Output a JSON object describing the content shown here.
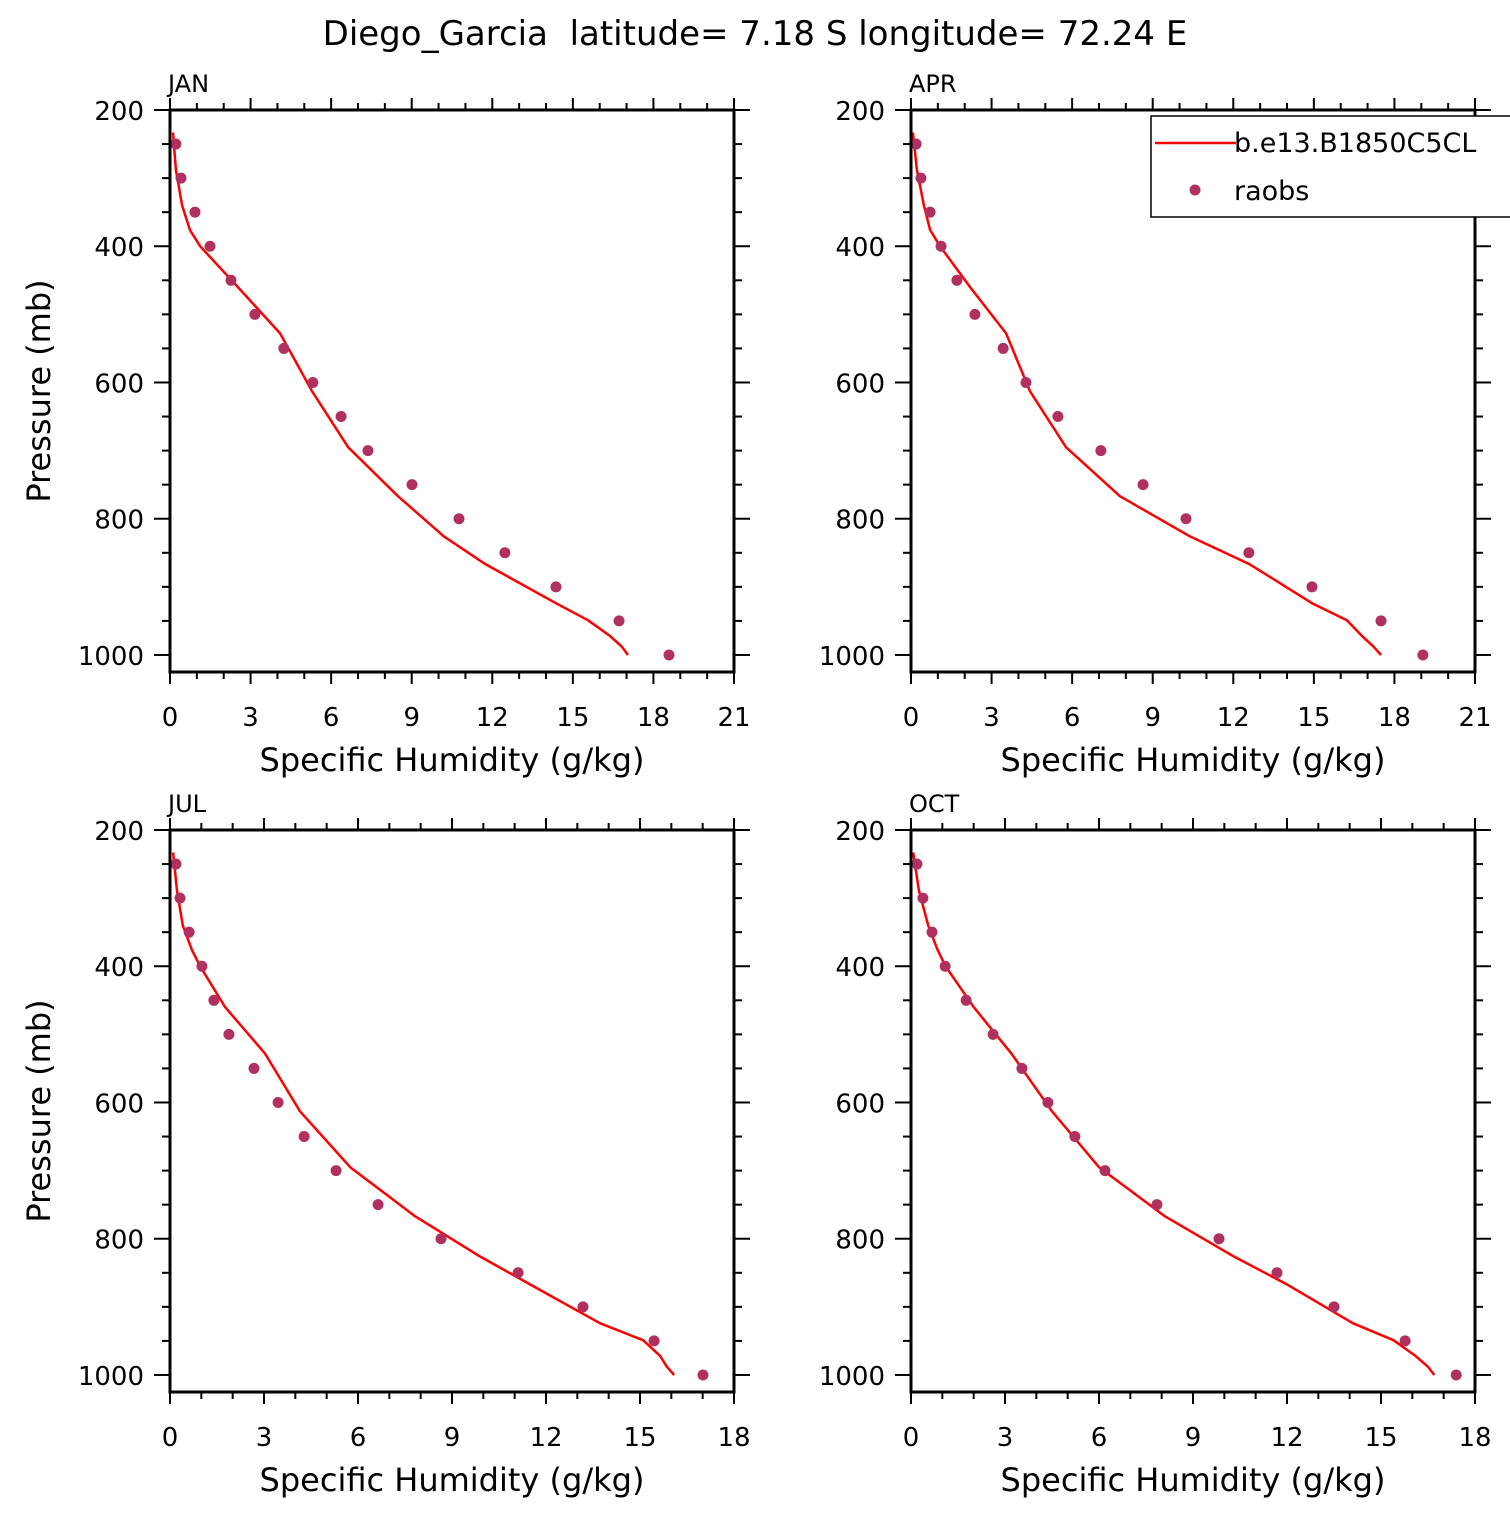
{
  "chart_data": {
    "title": "Diego_Garcia  latitude= 7.18 S longitude= 72.24 E",
    "legend": {
      "placement": "top-right",
      "entries": [
        {
          "label": "b.e13.B1850C5CL",
          "type": "line",
          "color": "#ff0000"
        },
        {
          "label": "raobs",
          "type": "scatter",
          "color": "#b03060"
        }
      ]
    },
    "colors": {
      "model": "#ff0000",
      "raobs": "#b03060",
      "axis": "#000000"
    },
    "panels": [
      {
        "type": "line",
        "label": "JAN",
        "xlabel": "Specific Humidity (g/kg)",
        "ylabel": "Pressure (mb)",
        "xlim": [
          0,
          21
        ],
        "xticks": [
          0,
          3,
          6,
          9,
          12,
          15,
          18,
          21
        ],
        "ylim": [
          1025,
          200
        ],
        "yticks": [
          200,
          400,
          600,
          800,
          1000
        ],
        "model": {
          "p": [
            233,
            288,
            340,
            376,
            400,
            460,
            528,
            613,
            695,
            767,
            826,
            867,
            924,
            949,
            972,
            988,
            1000
          ],
          "q": [
            0.11,
            0.22,
            0.45,
            0.74,
            1.12,
            2.53,
            4.1,
            5.29,
            6.63,
            8.49,
            10.2,
            11.76,
            14.37,
            15.56,
            16.38,
            16.83,
            17.05
          ]
        },
        "raobs": {
          "p": [
            250,
            300,
            350,
            400,
            450,
            500,
            550,
            600,
            650,
            700,
            750,
            800,
            850,
            900,
            950,
            1000
          ],
          "q": [
            0.22,
            0.41,
            0.93,
            1.49,
            2.27,
            3.16,
            4.24,
            5.32,
            6.37,
            7.37,
            9.01,
            10.76,
            12.47,
            14.37,
            16.72,
            18.58
          ]
        }
      },
      {
        "type": "line",
        "label": "APR",
        "xlabel": "Specific Humidity (g/kg)",
        "ylabel": "",
        "xlim": [
          0,
          21
        ],
        "xticks": [
          0,
          3,
          6,
          9,
          12,
          15,
          18,
          21
        ],
        "ylim": [
          1025,
          200
        ],
        "yticks": [
          200,
          400,
          600,
          800,
          1000
        ],
        "model": {
          "p": [
            233,
            288,
            340,
            376,
            400,
            460,
            528,
            613,
            695,
            767,
            826,
            867,
            924,
            949,
            972,
            988,
            1000
          ],
          "q": [
            0.07,
            0.22,
            0.48,
            0.71,
            1.08,
            2.2,
            3.54,
            4.43,
            5.77,
            7.78,
            10.39,
            12.62,
            14.93,
            16.23,
            16.79,
            17.23,
            17.5
          ]
        },
        "raobs": {
          "p": [
            250,
            300,
            350,
            400,
            450,
            500,
            550,
            600,
            650,
            700,
            750,
            800,
            850,
            900,
            950,
            1000
          ],
          "q": [
            0.19,
            0.37,
            0.71,
            1.12,
            1.71,
            2.38,
            3.43,
            4.28,
            5.47,
            7.07,
            8.64,
            10.24,
            12.58,
            14.93,
            17.5,
            19.06
          ]
        }
      },
      {
        "type": "line",
        "label": "JUL",
        "xlabel": "Specific Humidity (g/kg)",
        "ylabel": "Pressure (mb)",
        "xlim": [
          0,
          18
        ],
        "xticks": [
          0,
          3,
          6,
          9,
          12,
          15,
          18
        ],
        "ylim": [
          1025,
          200
        ],
        "yticks": [
          200,
          400,
          600,
          800,
          1000
        ],
        "model": {
          "p": [
            233,
            288,
            340,
            376,
            400,
            460,
            528,
            613,
            695,
            767,
            826,
            867,
            924,
            949,
            972,
            988,
            1000
          ],
          "q": [
            0.1,
            0.22,
            0.41,
            0.7,
            0.96,
            1.76,
            3.03,
            4.15,
            5.75,
            7.82,
            9.89,
            11.49,
            13.72,
            15.1,
            15.64,
            15.86,
            16.09
          ]
        },
        "raobs": {
          "p": [
            250,
            300,
            350,
            400,
            450,
            500,
            550,
            600,
            650,
            700,
            750,
            800,
            850,
            900,
            950,
            1000
          ],
          "q": [
            0.19,
            0.32,
            0.61,
            1.02,
            1.4,
            1.88,
            2.68,
            3.45,
            4.28,
            5.3,
            6.64,
            8.65,
            11.11,
            13.18,
            15.45,
            17.01
          ]
        }
      },
      {
        "type": "line",
        "label": "OCT",
        "xlabel": "Specific Humidity (g/kg)",
        "ylabel": "",
        "xlim": [
          0,
          18
        ],
        "xticks": [
          0,
          3,
          6,
          9,
          12,
          15,
          18
        ],
        "ylim": [
          1025,
          200
        ],
        "yticks": [
          200,
          400,
          600,
          800,
          1000
        ],
        "model": {
          "p": [
            233,
            288,
            340,
            376,
            400,
            460,
            528,
            613,
            695,
            767,
            826,
            867,
            924,
            949,
            972,
            988,
            1000
          ],
          "q": [
            0.07,
            0.25,
            0.55,
            0.85,
            1.1,
            2.0,
            3.2,
            4.5,
            6.0,
            8.1,
            10.3,
            12.0,
            14.1,
            15.4,
            16.1,
            16.5,
            16.7
          ]
        },
        "raobs": {
          "p": [
            250,
            300,
            350,
            400,
            450,
            500,
            550,
            600,
            650,
            700,
            750,
            800,
            850,
            900,
            950,
            1000
          ],
          "q": [
            0.19,
            0.38,
            0.67,
            1.09,
            1.76,
            2.62,
            3.54,
            4.37,
            5.23,
            6.19,
            7.85,
            9.83,
            11.68,
            13.5,
            15.77,
            17.4
          ]
        }
      }
    ]
  }
}
